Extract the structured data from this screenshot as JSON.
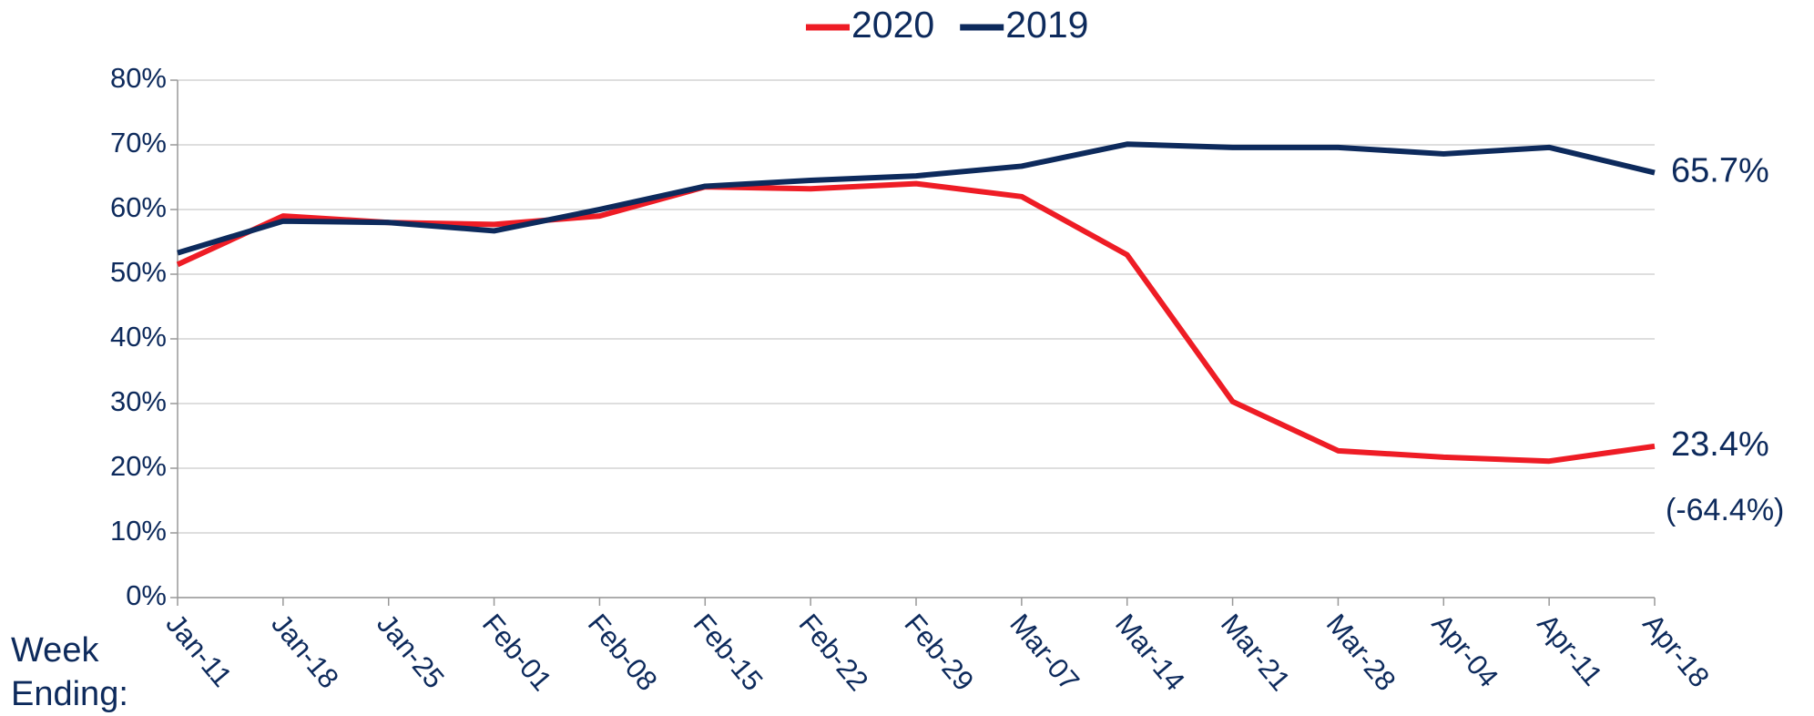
{
  "chart_data": {
    "type": "line",
    "categories": [
      "Jan-11",
      "Jan-18",
      "Jan-25",
      "Feb-01",
      "Feb-08",
      "Feb-15",
      "Feb-22",
      "Feb-29",
      "Mar-07",
      "Mar-14",
      "Mar-21",
      "Mar-28",
      "Apr-04",
      "Apr-11",
      "Apr-18"
    ],
    "series": [
      {
        "name": "2020",
        "color": "#ee1c25",
        "values": [
          51.5,
          59,
          58,
          57.7,
          59,
          63.5,
          63.2,
          64,
          62,
          53,
          30.3,
          22.7,
          21.7,
          21.1,
          23.4
        ],
        "end_label": "23.4%"
      },
      {
        "name": "2019",
        "color": "#0d2a5c",
        "values": [
          53.3,
          58.2,
          58,
          56.7,
          60,
          63.6,
          64.5,
          65.2,
          66.7,
          70.1,
          69.6,
          69.6,
          68.6,
          69.6,
          65.7
        ],
        "end_label": "65.7%"
      }
    ],
    "annotations": [
      "(-64.4%)"
    ],
    "x_label": "Week Ending:",
    "ylim": [
      0,
      80
    ],
    "yticks": [
      {
        "value": 0,
        "label": "0%"
      },
      {
        "value": 10,
        "label": "10%"
      },
      {
        "value": 20,
        "label": "20%"
      },
      {
        "value": 30,
        "label": "30%"
      },
      {
        "value": 40,
        "label": "40%"
      },
      {
        "value": 50,
        "label": "50%"
      },
      {
        "value": 60,
        "label": "60%"
      },
      {
        "value": 70,
        "label": "70%"
      },
      {
        "value": 80,
        "label": "80%"
      }
    ],
    "grid": true,
    "legend": "top"
  }
}
